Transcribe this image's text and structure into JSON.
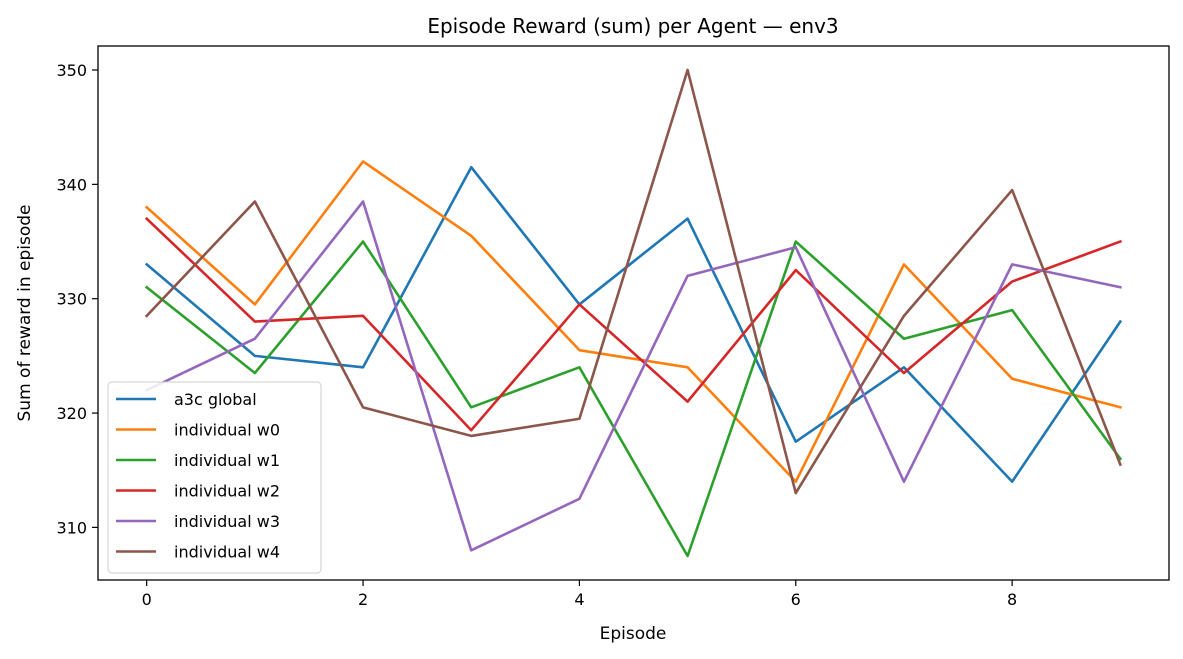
{
  "chart_data": {
    "type": "line",
    "title": "Episode Reward (sum) per Agent — env3",
    "xlabel": "Episode",
    "ylabel": "Sum of reward in episode",
    "x": [
      0,
      1,
      2,
      3,
      4,
      5,
      6,
      7,
      8,
      9
    ],
    "xlim": [
      -0.45,
      9.45
    ],
    "ylim": [
      305.4,
      352.1
    ],
    "xticks": [
      0,
      2,
      4,
      6,
      8
    ],
    "yticks": [
      310,
      320,
      330,
      340,
      350
    ],
    "grid": false,
    "legend_position": "lower-left",
    "series": [
      {
        "name": "a3c global",
        "color": "#1f77b4",
        "values": [
          333,
          325,
          324,
          341.5,
          329.5,
          337,
          317.5,
          324,
          314,
          328
        ]
      },
      {
        "name": "individual w0",
        "color": "#ff7f0e",
        "values": [
          338,
          329.5,
          342,
          335.5,
          325.5,
          324,
          314,
          333,
          323,
          320.5
        ]
      },
      {
        "name": "individual w1",
        "color": "#2ca02c",
        "values": [
          331,
          323.5,
          335,
          320.5,
          324,
          307.5,
          335,
          326.5,
          329,
          316
        ]
      },
      {
        "name": "individual w2",
        "color": "#d62728",
        "values": [
          337,
          328,
          328.5,
          318.5,
          329.5,
          321,
          332.5,
          323.5,
          331.5,
          335
        ]
      },
      {
        "name": "individual w3",
        "color": "#9467bd",
        "values": [
          322,
          326.5,
          338.5,
          308,
          312.5,
          332,
          334.5,
          314,
          333,
          331
        ]
      },
      {
        "name": "individual w4",
        "color": "#8c564b",
        "values": [
          328.5,
          338.5,
          320.5,
          318,
          319.5,
          350,
          313,
          328.5,
          339.5,
          315.5
        ]
      }
    ]
  }
}
